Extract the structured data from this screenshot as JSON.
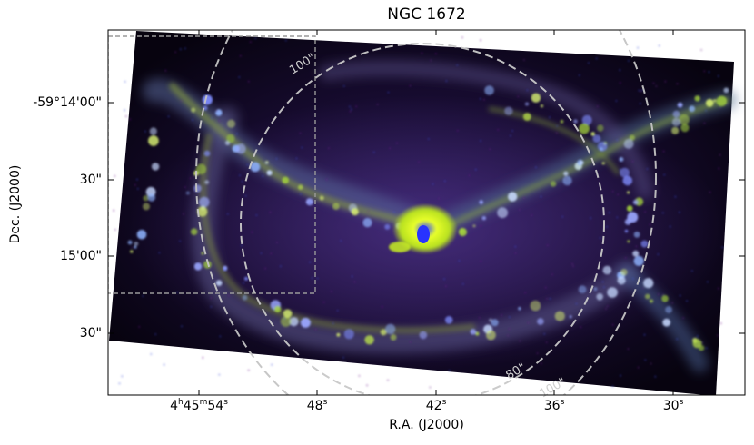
{
  "figure": {
    "title": "NGC 1672",
    "xlabel": "R.A. (J2000)",
    "ylabel": "Dec. (J2000)",
    "dec_ticks": [
      "-59°14'00\"",
      "30\"",
      "15'00\"",
      "30\""
    ],
    "ra_ticks": [
      {
        "base": "4",
        "h": "h",
        "mid": "45",
        "m": "m",
        "sec": "54",
        "s": "s"
      },
      {
        "base": "",
        "h": "",
        "mid": "",
        "m": "",
        "sec": "48",
        "s": "s"
      },
      {
        "base": "",
        "h": "",
        "mid": "",
        "m": "",
        "sec": "42",
        "s": "s"
      },
      {
        "base": "",
        "h": "",
        "mid": "",
        "m": "",
        "sec": "36",
        "s": "s"
      },
      {
        "base": "",
        "h": "",
        "mid": "",
        "m": "",
        "sec": "30",
        "s": "s"
      }
    ],
    "contour_labels": {
      "outer_top": "100\"",
      "inner_bottom": "80\"",
      "outer_bottom": "100\""
    },
    "colors": {
      "background": "#06030d",
      "arm_green": "#9ac23a",
      "arm_blue": "#6b7de6",
      "nucleus": "#d6f21a",
      "ellipse": "#c8c8c8",
      "inset_box": "#9a9a9a"
    }
  }
}
